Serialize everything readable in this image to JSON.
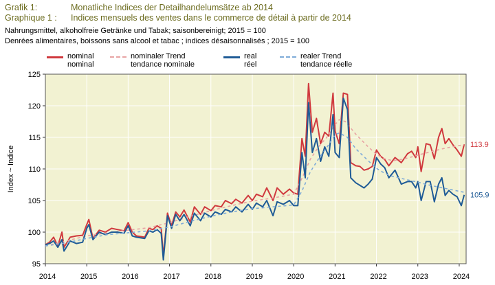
{
  "header": {
    "de_label": "Grafik 1:",
    "de_title": "Monatliche Indices der Detailhandelumsätze ab 2014",
    "fr_label": "Graphique 1 :",
    "fr_title": "Indices mensuels des ventes dans le commerce de détail à partir de 2014",
    "subtitle_de": "Nahrungsmittel, alkoholfreie Getränke und Tabak; saisonbereinigt; 2015 = 100",
    "subtitle_fr": "Denrées alimentaires, boissons sans alcool et tabac ; indices désaisonnalisés ; 2015 = 100"
  },
  "legend": [
    {
      "de": "nominal",
      "fr": "nominal",
      "color": "#d0393e",
      "dashed": false
    },
    {
      "de": "nominaler Trend",
      "fr": "tendance nominale",
      "color": "#e8a3a3",
      "dashed": true
    },
    {
      "de": "real",
      "fr": "réel",
      "color": "#1f5b96",
      "dashed": false
    },
    {
      "de": "realer Trend",
      "fr": "tendance réelle",
      "color": "#7eabd8",
      "dashed": true
    }
  ],
  "chart_data": {
    "type": "line",
    "ylabel": "Index ~ Indice",
    "ylim": [
      95,
      125
    ],
    "yticks": [
      95,
      100,
      105,
      110,
      115,
      120,
      125
    ],
    "xlim": [
      2014.0,
      2024.167
    ],
    "xtick_labels": [
      "2014",
      "2015",
      "2016",
      "2017",
      "2018",
      "2019",
      "2020",
      "2021",
      "2022",
      "2023",
      "2024"
    ],
    "grid": true,
    "end_labels": [
      {
        "text": "113.9",
        "color": "#d0393e"
      },
      {
        "text": "105.9",
        "color": "#1f5b96"
      }
    ],
    "series": [
      {
        "name": "nominal",
        "color": "#d0393e",
        "dashed": false,
        "width": 2,
        "points": [
          [
            2014.0,
            98.0
          ],
          [
            2014.1,
            98.4
          ],
          [
            2014.2,
            99.2
          ],
          [
            2014.3,
            97.8
          ],
          [
            2014.4,
            100.0
          ],
          [
            2014.45,
            97.6
          ],
          [
            2014.6,
            99.2
          ],
          [
            2014.75,
            99.4
          ],
          [
            2014.9,
            99.5
          ],
          [
            2015.0,
            101.2
          ],
          [
            2015.05,
            102.0
          ],
          [
            2015.15,
            99.0
          ],
          [
            2015.3,
            100.3
          ],
          [
            2015.45,
            100.0
          ],
          [
            2015.6,
            100.6
          ],
          [
            2015.75,
            100.4
          ],
          [
            2015.9,
            100.2
          ],
          [
            2016.0,
            101.5
          ],
          [
            2016.1,
            100.0
          ],
          [
            2016.2,
            99.4
          ],
          [
            2016.4,
            99.2
          ],
          [
            2016.5,
            100.6
          ],
          [
            2016.6,
            100.4
          ],
          [
            2016.7,
            101.0
          ],
          [
            2016.8,
            100.6
          ],
          [
            2016.85,
            96.2
          ],
          [
            2016.95,
            103.0
          ],
          [
            2017.05,
            101.0
          ],
          [
            2017.15,
            103.2
          ],
          [
            2017.25,
            102.4
          ],
          [
            2017.35,
            103.5
          ],
          [
            2017.5,
            101.6
          ],
          [
            2017.6,
            104.0
          ],
          [
            2017.75,
            102.8
          ],
          [
            2017.85,
            104.0
          ],
          [
            2018.0,
            103.4
          ],
          [
            2018.1,
            104.2
          ],
          [
            2018.25,
            104.0
          ],
          [
            2018.35,
            105.0
          ],
          [
            2018.5,
            104.5
          ],
          [
            2018.6,
            105.2
          ],
          [
            2018.75,
            104.6
          ],
          [
            2018.9,
            105.8
          ],
          [
            2019.0,
            105.0
          ],
          [
            2019.1,
            106.0
          ],
          [
            2019.25,
            105.6
          ],
          [
            2019.35,
            107.0
          ],
          [
            2019.5,
            105.0
          ],
          [
            2019.6,
            107.0
          ],
          [
            2019.75,
            106.0
          ],
          [
            2019.9,
            106.8
          ],
          [
            2020.0,
            106.2
          ],
          [
            2020.1,
            106.0
          ],
          [
            2020.2,
            114.8
          ],
          [
            2020.28,
            112.0
          ],
          [
            2020.36,
            123.5
          ],
          [
            2020.45,
            115.8
          ],
          [
            2020.55,
            118.0
          ],
          [
            2020.65,
            114.0
          ],
          [
            2020.75,
            115.8
          ],
          [
            2020.85,
            115.2
          ],
          [
            2020.95,
            122.0
          ],
          [
            2021.0,
            116.0
          ],
          [
            2021.1,
            114.0
          ],
          [
            2021.2,
            122.0
          ],
          [
            2021.3,
            121.8
          ],
          [
            2021.38,
            111.0
          ],
          [
            2021.5,
            110.5
          ],
          [
            2021.6,
            110.4
          ],
          [
            2021.7,
            109.8
          ],
          [
            2021.8,
            110.0
          ],
          [
            2021.9,
            110.4
          ],
          [
            2022.0,
            113.0
          ],
          [
            2022.1,
            112.0
          ],
          [
            2022.2,
            111.5
          ],
          [
            2022.3,
            110.5
          ],
          [
            2022.45,
            111.8
          ],
          [
            2022.6,
            111.0
          ],
          [
            2022.75,
            112.4
          ],
          [
            2022.85,
            112.8
          ],
          [
            2022.95,
            111.8
          ],
          [
            2023.0,
            113.5
          ],
          [
            2023.08,
            109.6
          ],
          [
            2023.2,
            114.0
          ],
          [
            2023.3,
            113.8
          ],
          [
            2023.4,
            111.6
          ],
          [
            2023.5,
            115.0
          ],
          [
            2023.58,
            116.4
          ],
          [
            2023.66,
            114.0
          ],
          [
            2023.75,
            114.8
          ],
          [
            2023.85,
            113.8
          ],
          [
            2023.95,
            113.0
          ],
          [
            2024.05,
            112.0
          ],
          [
            2024.12,
            113.9
          ]
        ]
      },
      {
        "name": "nominaler Trend",
        "color": "#e8a3a3",
        "dashed": true,
        "width": 1.6,
        "points": [
          [
            2014.0,
            97.8
          ],
          [
            2014.5,
            98.6
          ],
          [
            2015.0,
            99.4
          ],
          [
            2015.5,
            99.9
          ],
          [
            2016.0,
            100.3
          ],
          [
            2016.5,
            100.7
          ],
          [
            2017.0,
            101.5
          ],
          [
            2017.5,
            102.5
          ],
          [
            2018.0,
            103.4
          ],
          [
            2018.5,
            104.2
          ],
          [
            2019.0,
            104.9
          ],
          [
            2019.5,
            105.4
          ],
          [
            2020.0,
            106.0
          ],
          [
            2020.2,
            108.5
          ],
          [
            2020.4,
            111.5
          ],
          [
            2020.6,
            113.5
          ],
          [
            2020.8,
            115.0
          ],
          [
            2021.0,
            117.0
          ],
          [
            2021.1,
            117.8
          ],
          [
            2021.25,
            117.5
          ],
          [
            2021.5,
            115.5
          ],
          [
            2021.8,
            113.5
          ],
          [
            2022.0,
            112.3
          ],
          [
            2022.2,
            111.6
          ],
          [
            2022.4,
            111.3
          ],
          [
            2022.6,
            111.5
          ],
          [
            2022.8,
            111.8
          ],
          [
            2023.0,
            112.2
          ],
          [
            2023.3,
            112.7
          ],
          [
            2023.6,
            113.2
          ],
          [
            2023.9,
            113.6
          ],
          [
            2024.12,
            113.8
          ]
        ]
      },
      {
        "name": "real",
        "color": "#1f5b96",
        "dashed": false,
        "width": 2,
        "points": [
          [
            2014.0,
            98.0
          ],
          [
            2014.1,
            98.2
          ],
          [
            2014.2,
            98.6
          ],
          [
            2014.3,
            97.6
          ],
          [
            2014.4,
            98.8
          ],
          [
            2014.45,
            97.0
          ],
          [
            2014.6,
            98.6
          ],
          [
            2014.75,
            98.2
          ],
          [
            2014.9,
            98.4
          ],
          [
            2015.0,
            100.6
          ],
          [
            2015.05,
            101.2
          ],
          [
            2015.15,
            98.8
          ],
          [
            2015.3,
            100.0
          ],
          [
            2015.45,
            99.6
          ],
          [
            2015.6,
            100.0
          ],
          [
            2015.75,
            100.0
          ],
          [
            2015.9,
            99.8
          ],
          [
            2016.0,
            101.0
          ],
          [
            2016.1,
            99.4
          ],
          [
            2016.2,
            99.2
          ],
          [
            2016.4,
            99.0
          ],
          [
            2016.5,
            100.2
          ],
          [
            2016.6,
            100.0
          ],
          [
            2016.7,
            100.4
          ],
          [
            2016.8,
            99.8
          ],
          [
            2016.85,
            95.6
          ],
          [
            2016.95,
            102.6
          ],
          [
            2017.05,
            100.6
          ],
          [
            2017.15,
            102.8
          ],
          [
            2017.25,
            101.8
          ],
          [
            2017.35,
            102.8
          ],
          [
            2017.5,
            101.0
          ],
          [
            2017.6,
            103.0
          ],
          [
            2017.75,
            101.8
          ],
          [
            2017.85,
            103.0
          ],
          [
            2018.0,
            102.4
          ],
          [
            2018.1,
            103.2
          ],
          [
            2018.25,
            102.8
          ],
          [
            2018.35,
            103.6
          ],
          [
            2018.5,
            103.2
          ],
          [
            2018.6,
            104.0
          ],
          [
            2018.75,
            103.2
          ],
          [
            2018.9,
            104.4
          ],
          [
            2019.0,
            103.6
          ],
          [
            2019.1,
            104.6
          ],
          [
            2019.25,
            104.0
          ],
          [
            2019.35,
            105.0
          ],
          [
            2019.5,
            102.6
          ],
          [
            2019.6,
            104.8
          ],
          [
            2019.75,
            104.4
          ],
          [
            2019.9,
            105.0
          ],
          [
            2020.0,
            104.2
          ],
          [
            2020.1,
            104.2
          ],
          [
            2020.2,
            112.6
          ],
          [
            2020.28,
            108.6
          ],
          [
            2020.36,
            120.5
          ],
          [
            2020.45,
            112.6
          ],
          [
            2020.55,
            114.8
          ],
          [
            2020.65,
            111.2
          ],
          [
            2020.75,
            113.5
          ],
          [
            2020.85,
            112.0
          ],
          [
            2020.95,
            118.6
          ],
          [
            2021.0,
            112.6
          ],
          [
            2021.1,
            111.8
          ],
          [
            2021.2,
            121.2
          ],
          [
            2021.3,
            119.4
          ],
          [
            2021.38,
            108.6
          ],
          [
            2021.5,
            107.8
          ],
          [
            2021.6,
            107.4
          ],
          [
            2021.7,
            107.0
          ],
          [
            2021.8,
            107.6
          ],
          [
            2021.9,
            108.4
          ],
          [
            2022.0,
            111.8
          ],
          [
            2022.1,
            110.8
          ],
          [
            2022.2,
            110.2
          ],
          [
            2022.3,
            108.6
          ],
          [
            2022.45,
            109.8
          ],
          [
            2022.6,
            107.6
          ],
          [
            2022.75,
            108.0
          ],
          [
            2022.85,
            108.0
          ],
          [
            2022.95,
            107.0
          ],
          [
            2023.0,
            108.0
          ],
          [
            2023.08,
            105.0
          ],
          [
            2023.2,
            108.0
          ],
          [
            2023.3,
            108.0
          ],
          [
            2023.4,
            104.8
          ],
          [
            2023.5,
            107.6
          ],
          [
            2023.58,
            108.6
          ],
          [
            2023.66,
            105.8
          ],
          [
            2023.75,
            106.6
          ],
          [
            2023.85,
            106.0
          ],
          [
            2023.95,
            105.6
          ],
          [
            2024.05,
            104.2
          ],
          [
            2024.12,
            105.9
          ]
        ]
      },
      {
        "name": "realer Trend",
        "color": "#7eabd8",
        "dashed": true,
        "width": 1.6,
        "points": [
          [
            2014.0,
            97.8
          ],
          [
            2014.5,
            98.3
          ],
          [
            2015.0,
            99.0
          ],
          [
            2015.5,
            99.6
          ],
          [
            2016.0,
            99.9
          ],
          [
            2016.5,
            100.2
          ],
          [
            2017.0,
            100.8
          ],
          [
            2017.5,
            101.7
          ],
          [
            2018.0,
            102.5
          ],
          [
            2018.5,
            103.2
          ],
          [
            2019.0,
            103.7
          ],
          [
            2019.5,
            104.0
          ],
          [
            2020.0,
            104.3
          ],
          [
            2020.2,
            106.5
          ],
          [
            2020.4,
            109.5
          ],
          [
            2020.6,
            111.6
          ],
          [
            2020.8,
            113.4
          ],
          [
            2021.0,
            115.4
          ],
          [
            2021.1,
            115.7
          ],
          [
            2021.3,
            115.0
          ],
          [
            2021.5,
            113.2
          ],
          [
            2021.8,
            111.3
          ],
          [
            2022.0,
            110.1
          ],
          [
            2022.2,
            109.3
          ],
          [
            2022.4,
            108.8
          ],
          [
            2022.6,
            108.5
          ],
          [
            2022.8,
            108.2
          ],
          [
            2023.0,
            107.9
          ],
          [
            2023.3,
            107.4
          ],
          [
            2023.6,
            107.0
          ],
          [
            2023.9,
            106.6
          ],
          [
            2024.12,
            106.3
          ]
        ]
      }
    ]
  }
}
